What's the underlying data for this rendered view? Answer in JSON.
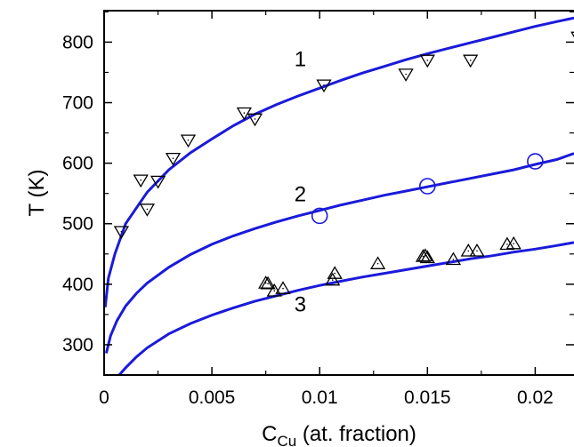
{
  "chart_data": {
    "type": "scatter",
    "title": "",
    "xlabel": {
      "main": "C",
      "sub": "Cu",
      "rest": " (at. fraction)"
    },
    "ylabel": "T (K)",
    "xlim": [
      0,
      0.0218
    ],
    "ylim": [
      250,
      852
    ],
    "xticks": [
      0,
      0.005,
      0.01,
      0.015,
      0.02
    ],
    "xtick_labels": [
      "0",
      "0.005",
      "0.01",
      "0.015",
      "0.02"
    ],
    "yticks": [
      300,
      400,
      500,
      600,
      700,
      800
    ],
    "ytick_labels": [
      "300",
      "400",
      "500",
      "600",
      "700",
      "800"
    ],
    "grid": false,
    "curve_color": "#1a1adb",
    "curves": [
      {
        "label": "1",
        "label_x": 0.0091,
        "label_y": 760,
        "points": [
          [
            5e-05,
            362
          ],
          [
            0.0002,
            410
          ],
          [
            0.0005,
            450
          ],
          [
            0.001,
            500
          ],
          [
            0.002,
            552
          ],
          [
            0.003,
            589
          ],
          [
            0.004,
            617
          ],
          [
            0.005,
            640
          ],
          [
            0.006,
            662
          ],
          [
            0.007,
            681
          ],
          [
            0.008,
            697
          ],
          [
            0.009,
            711
          ],
          [
            0.01,
            724
          ],
          [
            0.011,
            737
          ],
          [
            0.012,
            749
          ],
          [
            0.013,
            760
          ],
          [
            0.014,
            771
          ],
          [
            0.015,
            781
          ],
          [
            0.016,
            790
          ],
          [
            0.017,
            799
          ],
          [
            0.018,
            808
          ],
          [
            0.019,
            817
          ],
          [
            0.02,
            826
          ],
          [
            0.021,
            834
          ],
          [
            0.0218,
            840
          ]
        ]
      },
      {
        "label": "2",
        "label_x": 0.0091,
        "label_y": 537,
        "points": [
          [
            0.0001,
            286
          ],
          [
            0.0003,
            315
          ],
          [
            0.0006,
            340
          ],
          [
            0.001,
            364
          ],
          [
            0.0015,
            385
          ],
          [
            0.002,
            402
          ],
          [
            0.003,
            428
          ],
          [
            0.004,
            449
          ],
          [
            0.005,
            466
          ],
          [
            0.006,
            480
          ],
          [
            0.007,
            492
          ],
          [
            0.008,
            503
          ],
          [
            0.009,
            513
          ],
          [
            0.01,
            522
          ],
          [
            0.011,
            531
          ],
          [
            0.012,
            539
          ],
          [
            0.013,
            547
          ],
          [
            0.014,
            554
          ],
          [
            0.015,
            561
          ],
          [
            0.016,
            568
          ],
          [
            0.017,
            575
          ],
          [
            0.018,
            582
          ],
          [
            0.019,
            589
          ],
          [
            0.02,
            598
          ],
          [
            0.021,
            606
          ],
          [
            0.0218,
            616
          ]
        ]
      },
      {
        "label": "3",
        "label_x": 0.0091,
        "label_y": 355,
        "points": [
          [
            0.0007,
            250
          ],
          [
            0.001,
            262
          ],
          [
            0.0015,
            280
          ],
          [
            0.002,
            295
          ],
          [
            0.003,
            318
          ],
          [
            0.004,
            335
          ],
          [
            0.005,
            349
          ],
          [
            0.006,
            361
          ],
          [
            0.007,
            372
          ],
          [
            0.008,
            381
          ],
          [
            0.009,
            390
          ],
          [
            0.01,
            398
          ],
          [
            0.011,
            405
          ],
          [
            0.012,
            412
          ],
          [
            0.013,
            418
          ],
          [
            0.014,
            424
          ],
          [
            0.015,
            430
          ],
          [
            0.016,
            436
          ],
          [
            0.017,
            442
          ],
          [
            0.018,
            447
          ],
          [
            0.019,
            453
          ],
          [
            0.02,
            458
          ],
          [
            0.021,
            464
          ],
          [
            0.0218,
            469
          ]
        ]
      }
    ],
    "series": [
      {
        "marker": "triangle-down",
        "points": [
          [
            0.0008,
            487
          ],
          [
            0.0017,
            572
          ],
          [
            0.002,
            524
          ],
          [
            0.0025,
            570
          ],
          [
            0.0032,
            608
          ],
          [
            0.0039,
            638
          ],
          [
            0.0065,
            683
          ],
          [
            0.007,
            673
          ],
          [
            0.0102,
            729
          ],
          [
            0.014,
            747
          ],
          [
            0.015,
            770
          ],
          [
            0.017,
            770
          ],
          [
            0.022,
            808
          ]
        ]
      },
      {
        "marker": "circle",
        "points": [
          [
            0.01,
            513
          ],
          [
            0.015,
            562
          ],
          [
            0.02,
            603
          ]
        ]
      },
      {
        "marker": "triangle-up",
        "points": [
          [
            0.0075,
            402
          ],
          [
            0.0076,
            401
          ],
          [
            0.0079,
            389
          ],
          [
            0.0083,
            393
          ],
          [
            0.0106,
            407
          ],
          [
            0.0107,
            418
          ],
          [
            0.0127,
            434
          ],
          [
            0.0148,
            446
          ],
          [
            0.0149,
            447
          ],
          [
            0.015,
            444
          ],
          [
            0.0162,
            441
          ],
          [
            0.0169,
            455
          ],
          [
            0.0173,
            455
          ],
          [
            0.0187,
            466
          ],
          [
            0.019,
            467
          ]
        ]
      }
    ]
  }
}
